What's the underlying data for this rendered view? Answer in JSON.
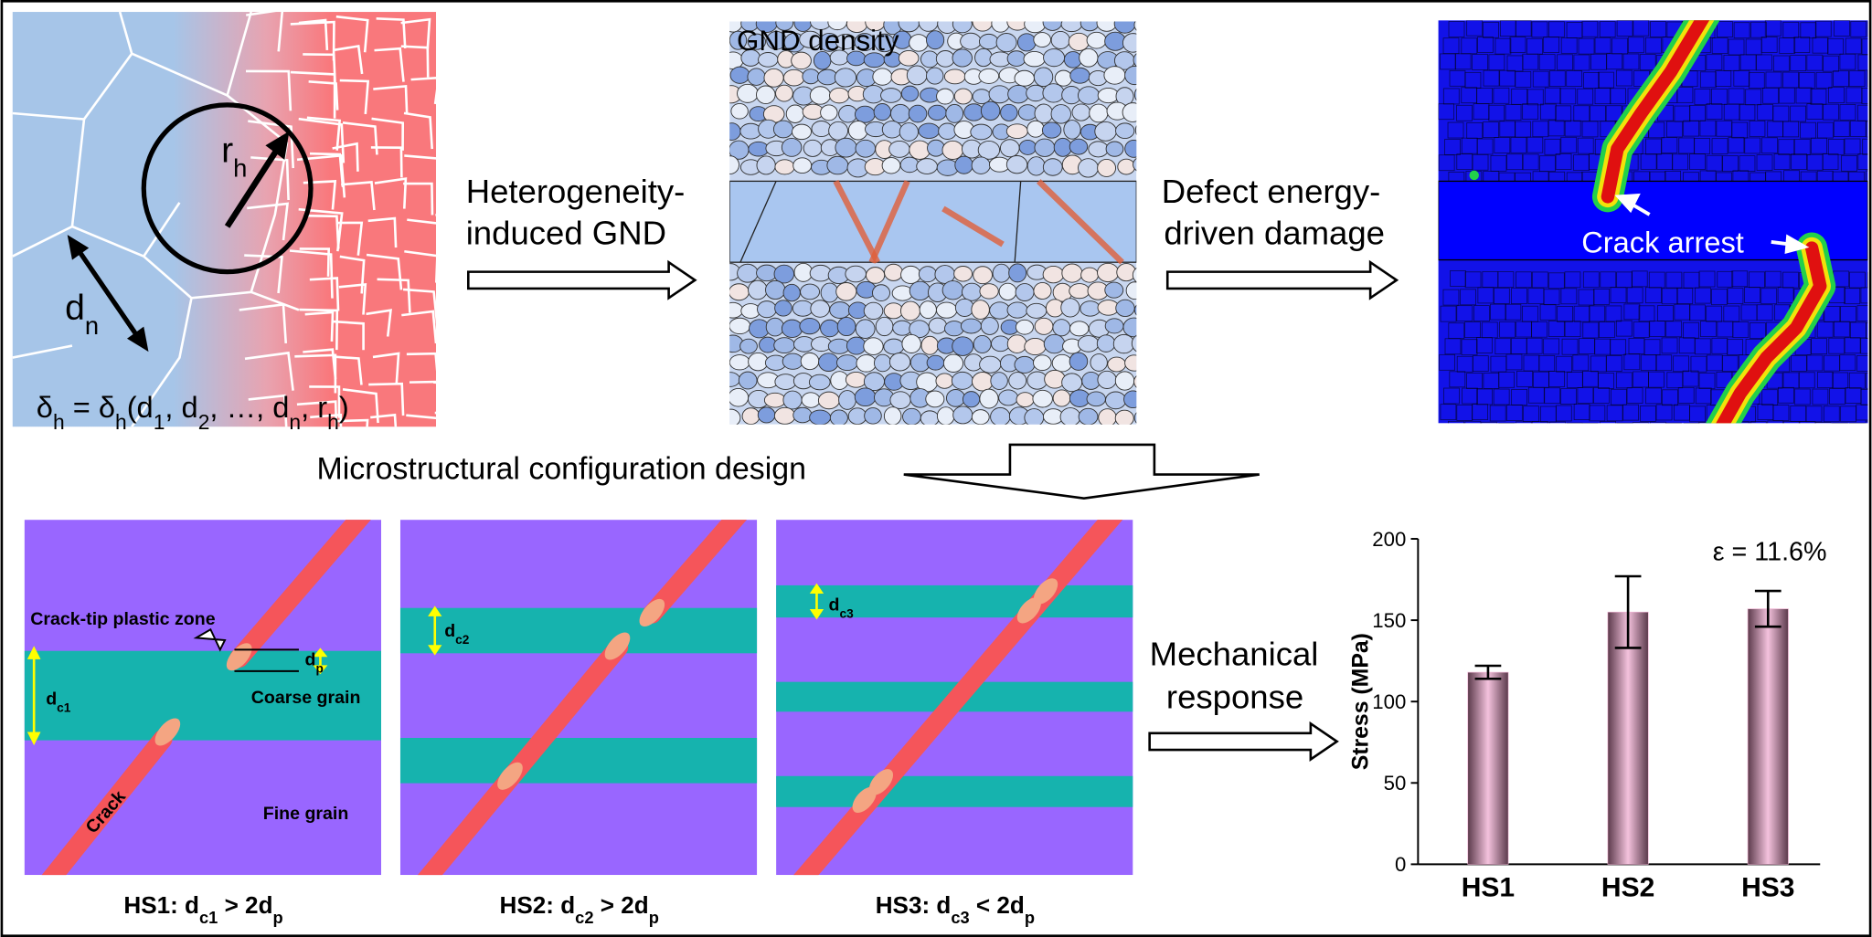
{
  "panels": {
    "grain_schematic": {
      "radius_label": [
        "r",
        "h"
      ],
      "size_label": [
        "d",
        "n"
      ],
      "formula": [
        "δ",
        "h",
        " = δ",
        "h",
        "(d",
        "1",
        ", d",
        "2",
        ", …, d",
        "n",
        ", r",
        "h",
        ")"
      ]
    },
    "step1": [
      "Heterogeneity-",
      "induced GND"
    ],
    "gnd_map": {
      "title": "GND density"
    },
    "step2": [
      "Defect energy-",
      "driven damage"
    ],
    "damage_map": {
      "annotation": "Crack arrest"
    },
    "design_step": "Microstructural configuration design",
    "hs1": {
      "zone_label": "Crack-tip plastic zone",
      "dp_label": [
        "d",
        "p"
      ],
      "dc_label": [
        "d",
        "c1"
      ],
      "coarse_label": "Coarse grain",
      "crack_label": "Crack",
      "fine_label": "Fine grain",
      "caption": [
        "HS1: d",
        "c1",
        " > 2d",
        "p"
      ]
    },
    "hs2": {
      "dc_label": [
        "d",
        "c2"
      ],
      "caption": [
        "HS2: d",
        "c2",
        " > 2d",
        "p"
      ]
    },
    "hs3": {
      "dc_label": [
        "d",
        "c3"
      ],
      "caption": [
        "HS3: d",
        "c3",
        " < 2d",
        "p"
      ]
    },
    "step3": [
      "Mechanical",
      "response"
    ]
  },
  "chart_data": {
    "type": "bar",
    "categories": [
      "HS1",
      "HS2",
      "HS3"
    ],
    "values": [
      118,
      155,
      157
    ],
    "errors": [
      4,
      22,
      11
    ],
    "ylabel": "Stress (MPa)",
    "annotation": "ε = 11.6%",
    "ylim": [
      0,
      200
    ],
    "yticks": [
      0,
      50,
      100,
      150,
      200
    ],
    "color": "#f2b6d6"
  }
}
